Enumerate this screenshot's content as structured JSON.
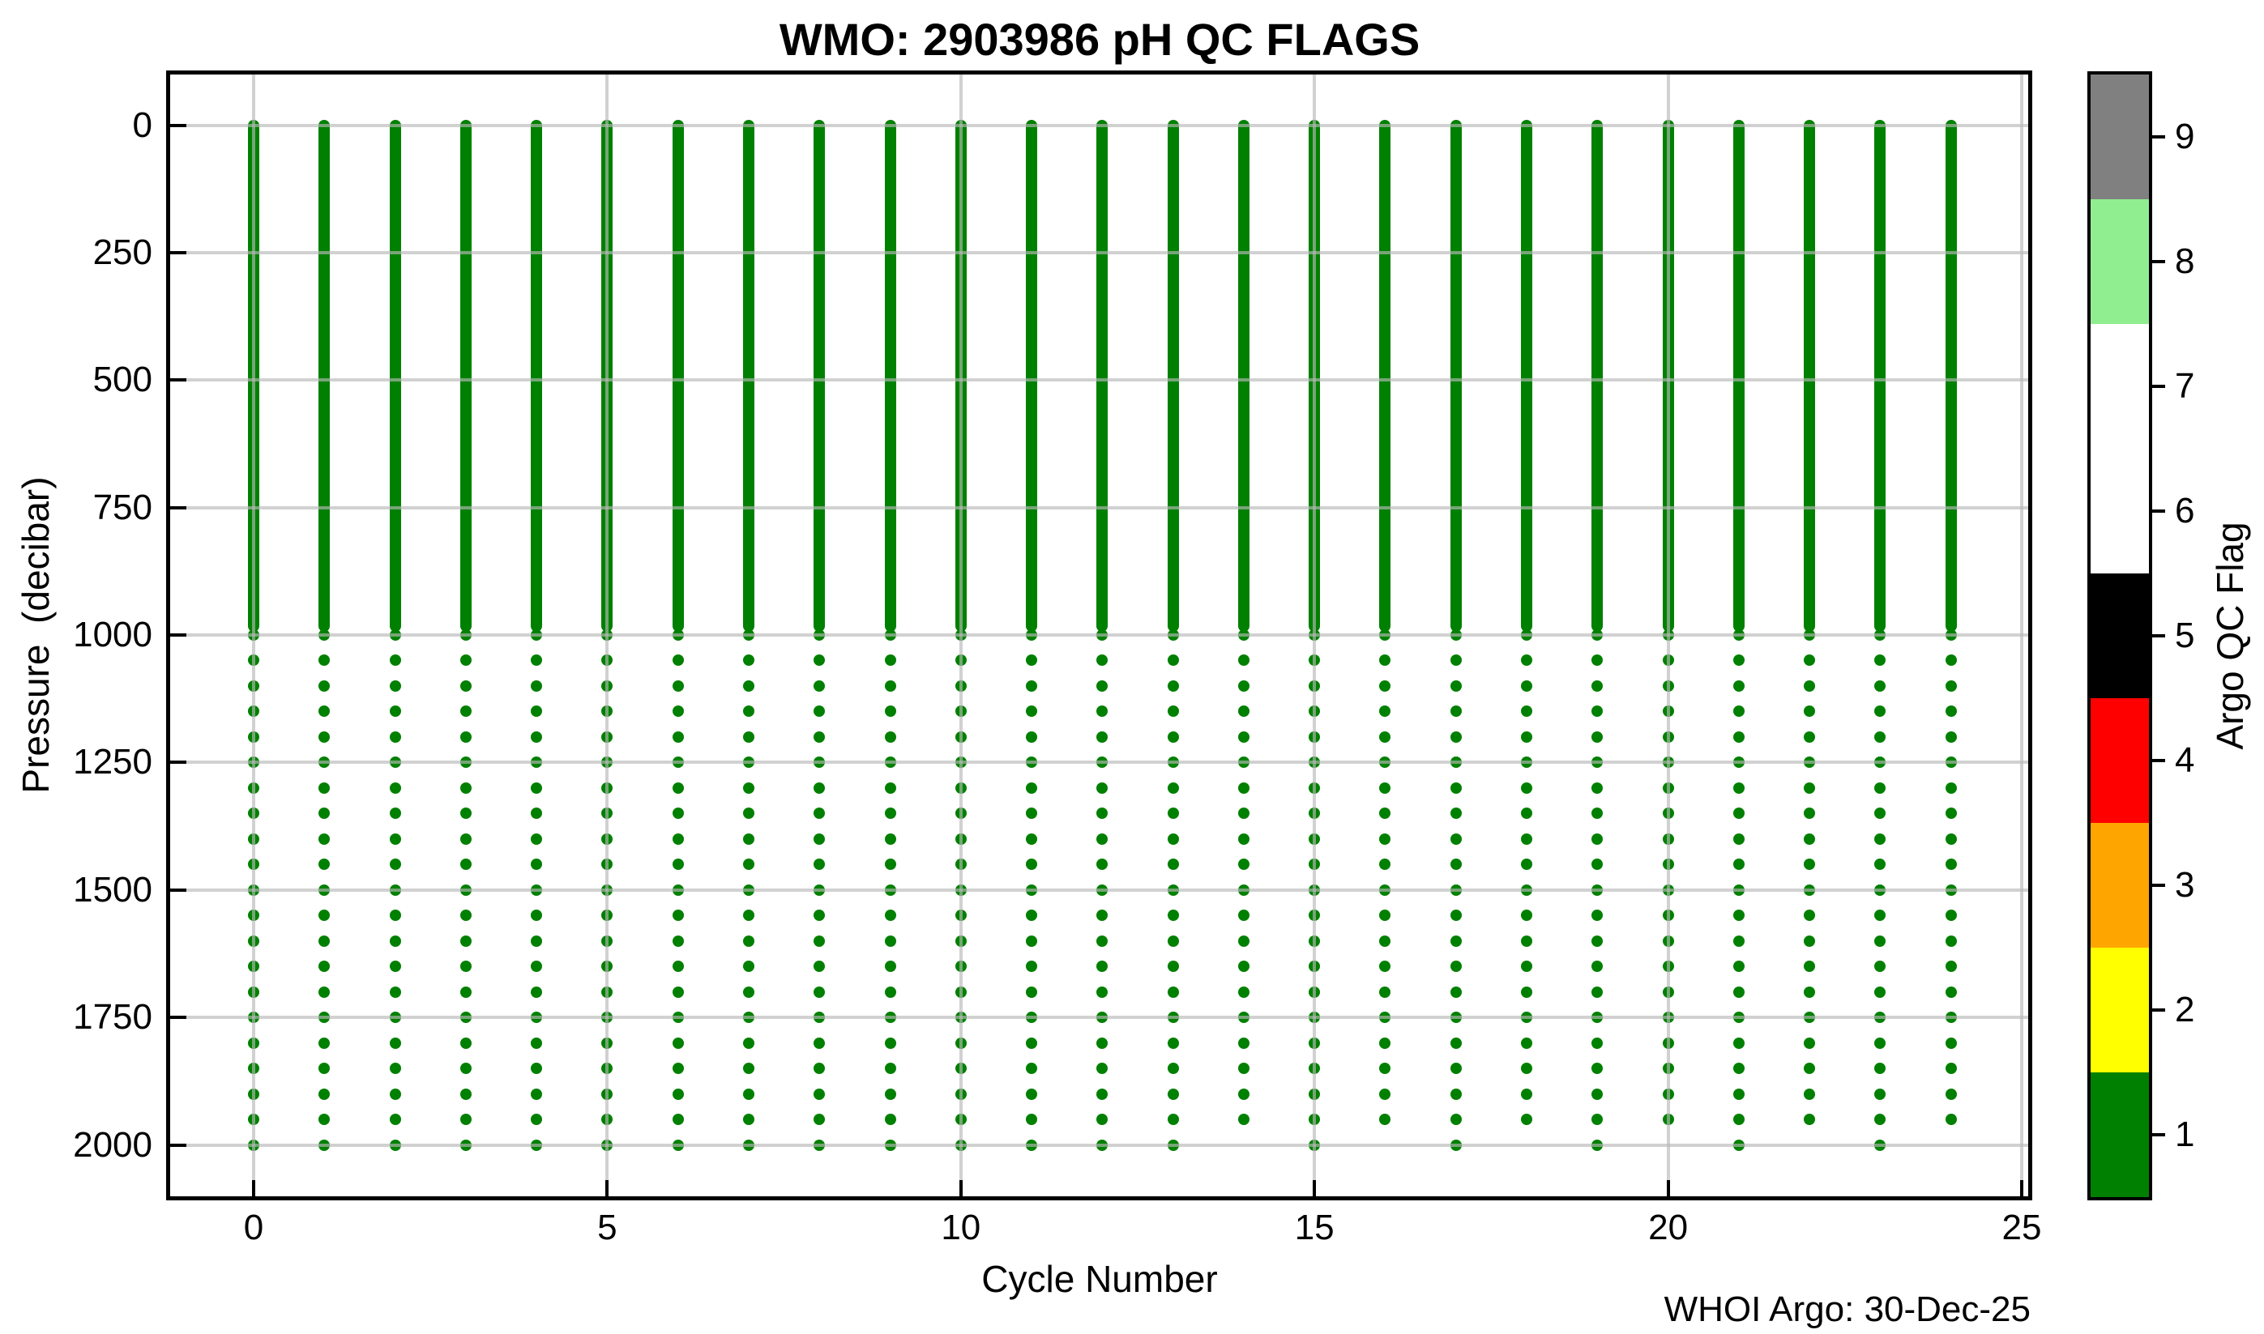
{
  "chart_data": {
    "type": "scatter",
    "title": "WMO: 2903986 pH QC FLAGS",
    "xlabel": "Cycle Number",
    "ylabel": "Pressure  (decibar)",
    "annotation": "WHOI Argo: 30-Dec-25",
    "x_ticks": [
      0,
      5,
      10,
      15,
      20,
      25
    ],
    "y_ticks": [
      0,
      250,
      500,
      750,
      1000,
      1250,
      1500,
      1750,
      2000
    ],
    "xlim": [
      -1.18,
      25.09
    ],
    "ylim": [
      -100,
      2100
    ],
    "y_axis_reversed": true,
    "grid": true,
    "marker_color": "#008000",
    "qc_flag_of_all_points": 1,
    "sampling": {
      "dense_range_dbar": [
        0,
        983
      ],
      "sparse_start_dbar": 1000,
      "sparse_step_dbar": 50
    },
    "cycles": [
      {
        "cycle": 0,
        "max_depth_dbar": 2000
      },
      {
        "cycle": 1,
        "max_depth_dbar": 2000
      },
      {
        "cycle": 2,
        "max_depth_dbar": 2000
      },
      {
        "cycle": 3,
        "max_depth_dbar": 2000
      },
      {
        "cycle": 4,
        "max_depth_dbar": 2000
      },
      {
        "cycle": 5,
        "max_depth_dbar": 2000
      },
      {
        "cycle": 6,
        "max_depth_dbar": 2000
      },
      {
        "cycle": 7,
        "max_depth_dbar": 2000
      },
      {
        "cycle": 8,
        "max_depth_dbar": 2000
      },
      {
        "cycle": 9,
        "max_depth_dbar": 2000
      },
      {
        "cycle": 10,
        "max_depth_dbar": 2000
      },
      {
        "cycle": 11,
        "max_depth_dbar": 2000
      },
      {
        "cycle": 12,
        "max_depth_dbar": 2000
      },
      {
        "cycle": 13,
        "max_depth_dbar": 2000
      },
      {
        "cycle": 14,
        "max_depth_dbar": 1950
      },
      {
        "cycle": 15,
        "max_depth_dbar": 2000
      },
      {
        "cycle": 16,
        "max_depth_dbar": 1950
      },
      {
        "cycle": 17,
        "max_depth_dbar": 2000
      },
      {
        "cycle": 18,
        "max_depth_dbar": 1950
      },
      {
        "cycle": 19,
        "max_depth_dbar": 2000
      },
      {
        "cycle": 20,
        "max_depth_dbar": 1950
      },
      {
        "cycle": 21,
        "max_depth_dbar": 2000
      },
      {
        "cycle": 22,
        "max_depth_dbar": 1950
      },
      {
        "cycle": 23,
        "max_depth_dbar": 2000
      },
      {
        "cycle": 24,
        "max_depth_dbar": 1950
      }
    ],
    "colorbar": {
      "label": "Argo QC Flag",
      "range": [
        0.5,
        9.5
      ],
      "ticks": [
        1,
        2,
        3,
        4,
        5,
        6,
        7,
        8,
        9
      ],
      "segments": [
        {
          "flag": "1",
          "color": "#008000",
          "from": 0.5,
          "to": 1.5
        },
        {
          "flag": "2",
          "color": "#FFFF00",
          "from": 1.5,
          "to": 2.5
        },
        {
          "flag": "3",
          "color": "#FFA500",
          "from": 2.5,
          "to": 3.5
        },
        {
          "flag": "4",
          "color": "#FF0000",
          "from": 3.5,
          "to": 4.5
        },
        {
          "flag": "5",
          "color": "#000000",
          "from": 4.5,
          "to": 5.5
        },
        {
          "flag": "6-7",
          "color": "#FFFFFF",
          "from": 5.5,
          "to": 7.5
        },
        {
          "flag": "8",
          "color": "#90EE90",
          "from": 7.5,
          "to": 8.5
        },
        {
          "flag": "9",
          "color": "#808080",
          "from": 8.5,
          "to": 9.5
        }
      ]
    }
  }
}
